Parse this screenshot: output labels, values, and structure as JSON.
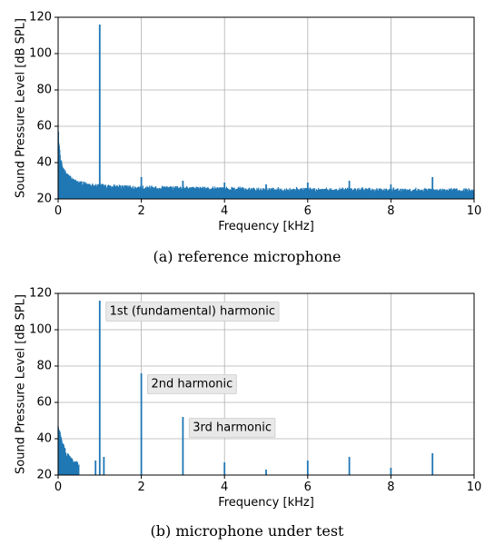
{
  "accent_color": "#1f77b4",
  "chart_data": [
    {
      "type": "bar",
      "caption": "(a) reference microphone",
      "xlabel": "Frequency [kHz]",
      "ylabel": "Sound Pressure Level [dB SPL]",
      "xlim": [
        0,
        10
      ],
      "ylim": [
        20,
        120
      ],
      "xticks": [
        "0",
        "2",
        "4",
        "6",
        "8",
        "10"
      ],
      "yticks": [
        "20",
        "40",
        "60",
        "80",
        "100",
        "120"
      ],
      "grid": true,
      "noise_floor": {
        "x_range_khz": [
          0,
          10
        ],
        "low_freq_points": [
          [
            0.0,
            62
          ],
          [
            0.02,
            52
          ],
          [
            0.05,
            44
          ],
          [
            0.1,
            38
          ],
          [
            0.2,
            34
          ],
          [
            0.4,
            30
          ],
          [
            0.8,
            28
          ],
          [
            2.0,
            26.5
          ],
          [
            5.0,
            25.5
          ],
          [
            10.0,
            25
          ]
        ],
        "fluctuation_db": 3
      },
      "spikes": [
        {
          "x": 1.0,
          "y": 116
        },
        {
          "x": 2.0,
          "y": 32
        },
        {
          "x": 3.0,
          "y": 30
        },
        {
          "x": 4.0,
          "y": 29
        },
        {
          "x": 5.0,
          "y": 28
        },
        {
          "x": 6.0,
          "y": 29
        },
        {
          "x": 7.0,
          "y": 30
        },
        {
          "x": 8.0,
          "y": 28
        },
        {
          "x": 9.0,
          "y": 32
        }
      ],
      "annotations": []
    },
    {
      "type": "bar",
      "caption": "(b) microphone under test",
      "xlabel": "Frequency [kHz]",
      "ylabel": "Sound Pressure Level [dB SPL]",
      "xlim": [
        0,
        10
      ],
      "ylim": [
        20,
        120
      ],
      "xticks": [
        "0",
        "2",
        "4",
        "6",
        "8",
        "10"
      ],
      "yticks": [
        "20",
        "40",
        "60",
        "80",
        "100",
        "120"
      ],
      "grid": true,
      "noise_floor": {
        "x_range_khz": [
          0,
          0.5
        ],
        "low_freq_points": [
          [
            0.0,
            47
          ],
          [
            0.05,
            44
          ],
          [
            0.1,
            38
          ],
          [
            0.2,
            32
          ],
          [
            0.35,
            28
          ],
          [
            0.5,
            26
          ]
        ],
        "fluctuation_db": 4
      },
      "spikes": [
        {
          "x": 0.9,
          "y": 28
        },
        {
          "x": 1.0,
          "y": 116
        },
        {
          "x": 1.1,
          "y": 30
        },
        {
          "x": 2.0,
          "y": 76
        },
        {
          "x": 3.0,
          "y": 52
        },
        {
          "x": 4.0,
          "y": 27
        },
        {
          "x": 5.0,
          "y": 23
        },
        {
          "x": 6.0,
          "y": 28
        },
        {
          "x": 7.0,
          "y": 30
        },
        {
          "x": 8.0,
          "y": 24
        },
        {
          "x": 9.0,
          "y": 32
        }
      ],
      "annotations": [
        {
          "text": "1st (fundamental) harmonic",
          "x": 1.15,
          "y": 110
        },
        {
          "text": "2nd harmonic",
          "x": 2.15,
          "y": 70
        },
        {
          "text": "3rd harmonic",
          "x": 3.15,
          "y": 46
        }
      ]
    }
  ]
}
